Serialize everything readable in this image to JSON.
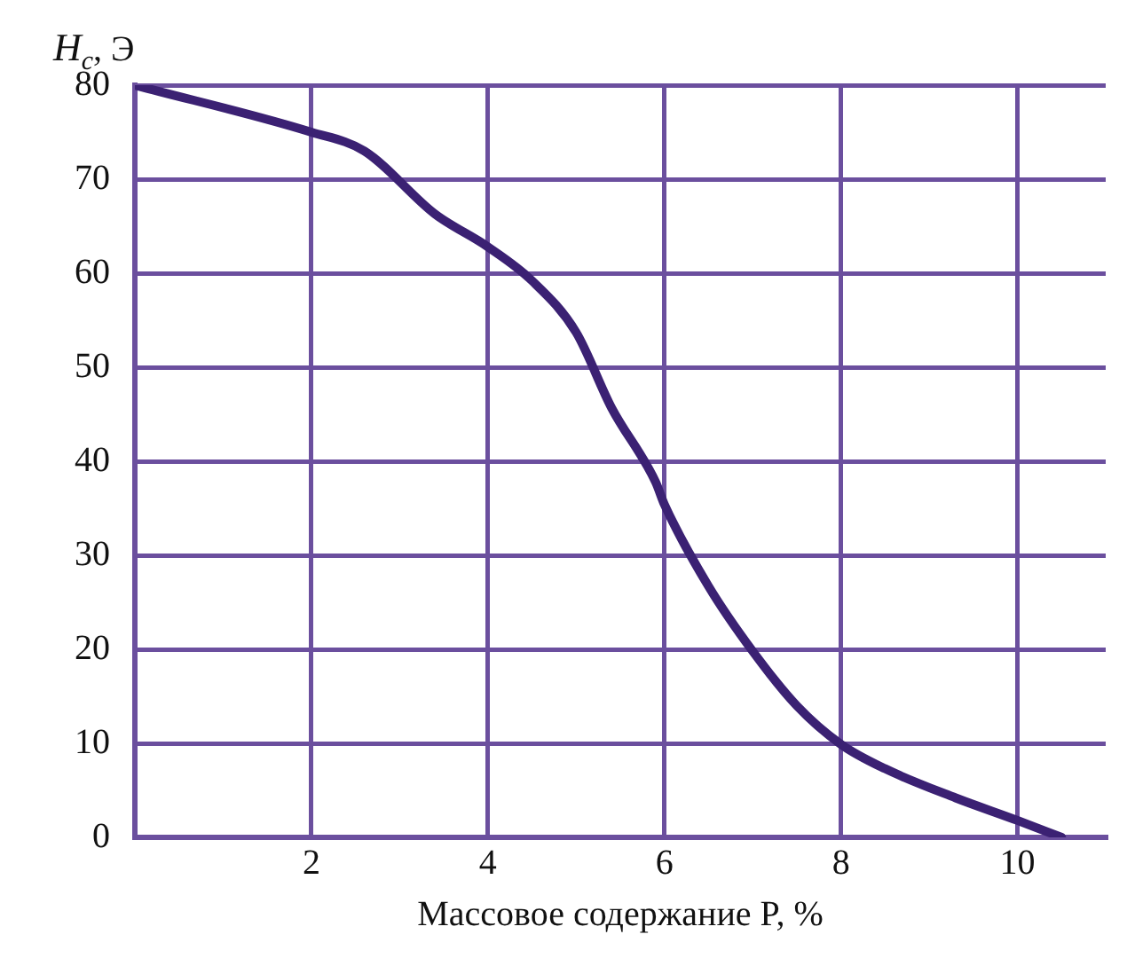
{
  "chart_data": {
    "type": "line",
    "xlabel": "Массовое содержание P, %",
    "ylabel": "H$_{c}$, Э",
    "x": [
      0,
      2,
      2.6,
      3.4,
      4,
      4.5,
      5,
      5.4,
      5.9,
      6,
      6.5,
      7,
      7.5,
      8,
      8.5,
      9.3,
      10,
      10.5
    ],
    "series": [
      {
        "color": "#3b2173",
        "values": [
          80,
          75,
          73,
          66.3,
          62.8,
          59.2,
          53.7,
          45.7,
          37.8,
          35.4,
          26.7,
          19.8,
          14,
          9.9,
          7.3,
          4.2,
          1.8,
          0
        ]
      }
    ],
    "xlim": [
      0,
      11
    ],
    "xticks": [
      {
        "value": 0,
        "label": null
      },
      2,
      4,
      6,
      8,
      10
    ],
    "ylim": [
      0,
      80
    ],
    "yticks": [
      0,
      10,
      20,
      30,
      40,
      50,
      60,
      70,
      80
    ],
    "grid": true,
    "legend": false,
    "marker": "none",
    "line_style": "solid"
  }
}
